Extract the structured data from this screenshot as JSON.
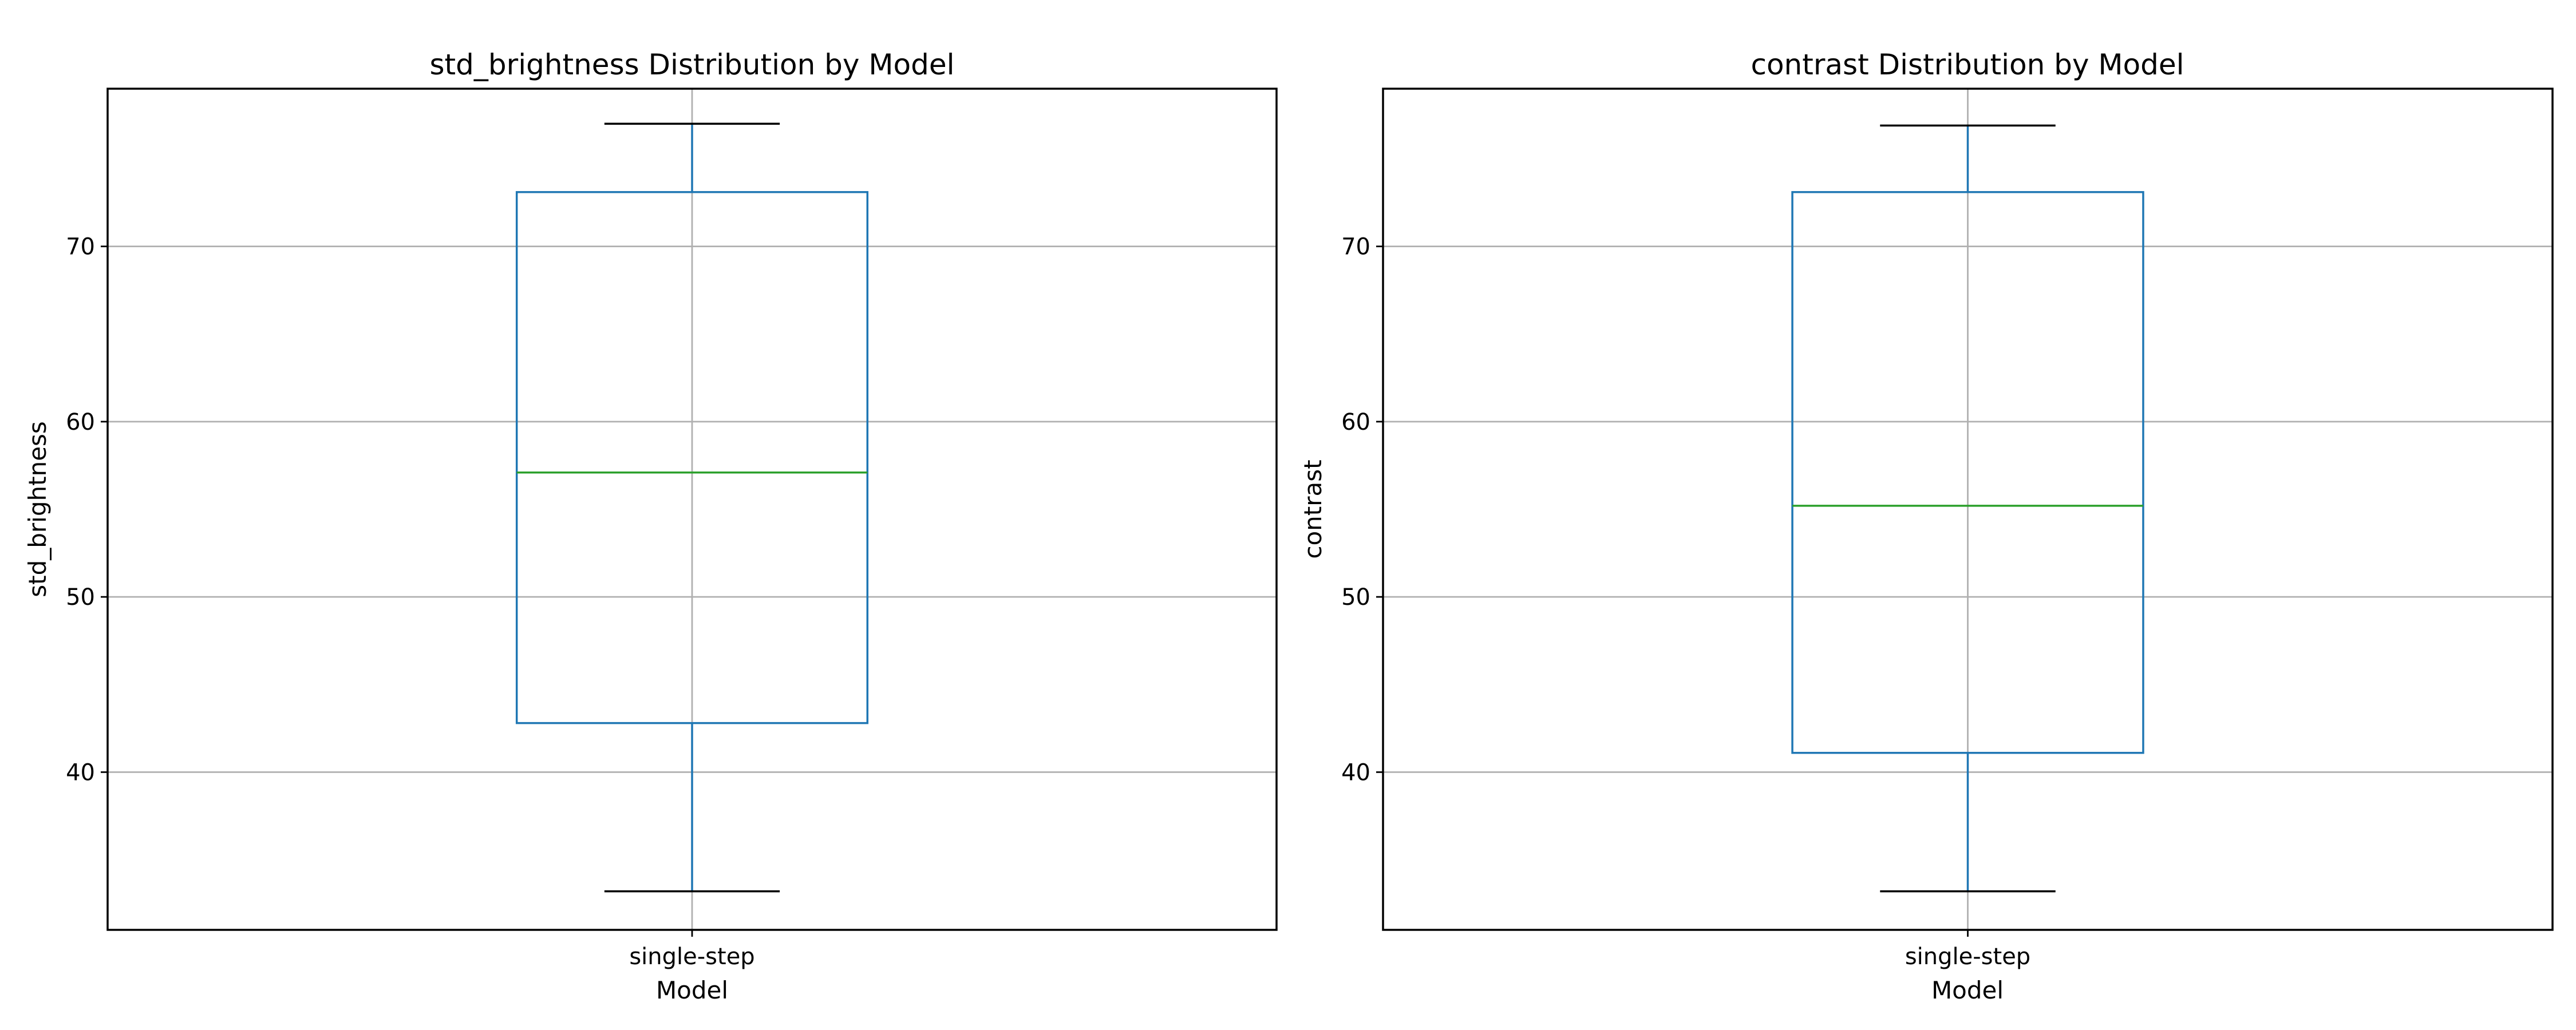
{
  "colors": {
    "box": "#1f77b4",
    "whisker": "#1f77b4",
    "cap": "#000000",
    "median": "#2ca02c",
    "grid": "#b0b0b0",
    "frame": "#000000"
  },
  "chart_data": [
    {
      "type": "box",
      "title": "std_brightness Distribution by Model",
      "xlabel": "Model",
      "ylabel": "std_brightness",
      "categories": [
        "single-step"
      ],
      "ylim": [
        31,
        79
      ],
      "yticks": [
        40,
        50,
        60,
        70
      ],
      "grid": true,
      "boxes": [
        {
          "category": "single-step",
          "whislo": 33.2,
          "q1": 42.8,
          "med": 57.1,
          "q3": 73.1,
          "whishi": 77.0
        }
      ]
    },
    {
      "type": "box",
      "title": "contrast Distribution by Model",
      "xlabel": "Model",
      "ylabel": "contrast",
      "categories": [
        "single-step"
      ],
      "ylim": [
        31,
        79
      ],
      "yticks": [
        40,
        50,
        60,
        70
      ],
      "grid": true,
      "boxes": [
        {
          "category": "single-step",
          "whislo": 33.2,
          "q1": 41.1,
          "med": 55.2,
          "q3": 73.1,
          "whishi": 76.9
        }
      ]
    }
  ]
}
